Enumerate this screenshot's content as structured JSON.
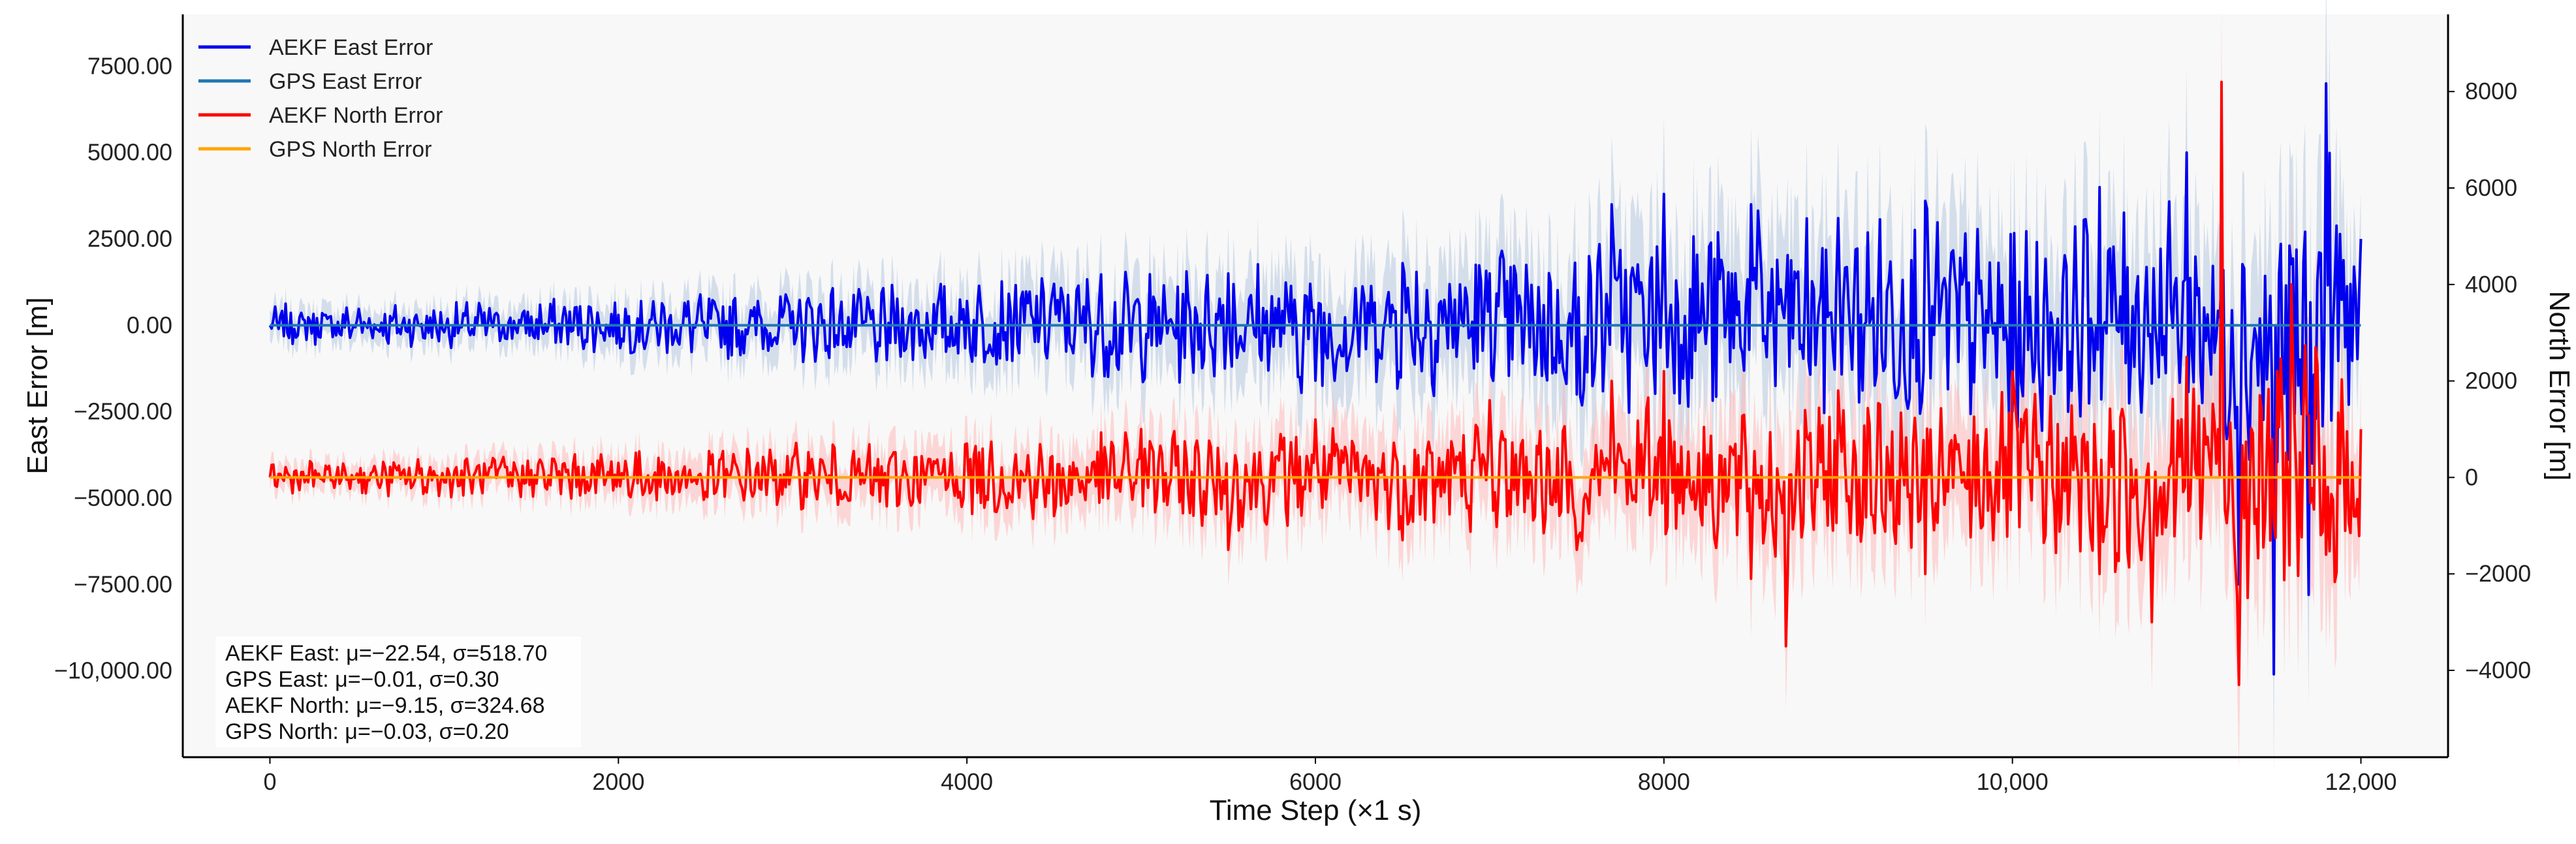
{
  "chart_data": {
    "type": "line",
    "xlabel": "Time Step (×1 s)",
    "ylabel_left": "East Error [m]",
    "ylabel_right": "North Error [m]",
    "xlim": [
      -500,
      12500
    ],
    "ylim_left": [
      -12500,
      9000
    ],
    "ylim_right": [
      -5800,
      9600
    ],
    "x_ticks": [
      0,
      2000,
      4000,
      6000,
      8000,
      10000,
      12000
    ],
    "x_tick_labels": [
      "0",
      "2000",
      "4000",
      "6000",
      "8000",
      "10,000",
      "12,000"
    ],
    "y_left_ticks": [
      7500,
      5000,
      2500,
      0,
      -2500,
      -5000,
      -7500,
      -10000
    ],
    "y_left_tick_labels": [
      "7500.00",
      "5000.00",
      "2500.00",
      "0.00",
      "−2500.00",
      "−5000.00",
      "−7500.00",
      "−10,000.00"
    ],
    "y_right_ticks": [
      8000,
      6000,
      4000,
      2000,
      0,
      -2000,
      -4000
    ],
    "y_right_tick_labels": [
      "8000",
      "6000",
      "4000",
      "2000",
      "0",
      "−2000",
      "−4000"
    ],
    "grid": false,
    "legend_position": "top-left",
    "colors": {
      "aekf_east": "#0000ee",
      "gps_east": "#1f77b4",
      "aekf_north": "#ff0000",
      "gps_north": "#ffa500",
      "east_band": "#b0c4de",
      "north_band": "#ffb3b3",
      "plot_bg": "#f8f8f8"
    },
    "series": [
      {
        "name": "AEKF East Error",
        "axis": "left",
        "color": "#0000ee",
        "x": [
          0,
          500,
          1000,
          1500,
          2000,
          2500,
          3000,
          3500,
          4000,
          4500,
          5000,
          5500,
          6000,
          6500,
          7000,
          7500,
          7700,
          8000,
          8500,
          9000,
          9500,
          10000,
          10500,
          11000,
          11300,
          11500,
          11700,
          11800,
          12000
        ],
        "values": [
          0,
          150,
          -200,
          250,
          300,
          -300,
          400,
          -600,
          700,
          1200,
          -900,
          1500,
          -1600,
          1800,
          1500,
          -2000,
          3500,
          3800,
          3500,
          3100,
          3600,
          -2500,
          4000,
          5000,
          -7500,
          -10100,
          -7800,
          7000,
          2500
        ],
        "envelope": [
          1000,
          1000,
          1100,
          1200,
          1400,
          1600,
          1800,
          2000,
          2200,
          2500,
          2700,
          3000,
          3200,
          3500,
          3700,
          4000,
          4500,
          5000,
          5000,
          5000,
          5000,
          5000,
          5000,
          5500,
          6000,
          6500,
          7000,
          8000,
          3000
        ]
      },
      {
        "name": "GPS East Error",
        "axis": "left",
        "color": "#1f77b4",
        "x": [
          0,
          12000
        ],
        "values": [
          0,
          0
        ]
      },
      {
        "name": "AEKF North Error",
        "axis": "right",
        "color": "#ff0000",
        "x": [
          0,
          500,
          1000,
          1500,
          2000,
          2500,
          3000,
          3500,
          4000,
          4500,
          5000,
          5500,
          6000,
          6500,
          7000,
          7500,
          7700,
          8000,
          8500,
          8700,
          9000,
          9500,
          10000,
          10500,
          10800,
          11000,
          11200,
          11300,
          11600,
          11800,
          12000
        ],
        "values": [
          0,
          80,
          -100,
          150,
          300,
          -300,
          400,
          -500,
          700,
          -800,
          1000,
          -1500,
          1200,
          -1300,
          1600,
          -1500,
          2000,
          2200,
          -2100,
          -3500,
          1800,
          -2000,
          2200,
          -2000,
          -3000,
          2500,
          8200,
          -4300,
          4000,
          -1600,
          1000
        ],
        "envelope": [
          600,
          600,
          700,
          800,
          900,
          1000,
          1100,
          1200,
          1300,
          1400,
          1600,
          1700,
          1800,
          1900,
          2000,
          2100,
          2300,
          2500,
          2700,
          3000,
          2600,
          2600,
          2800,
          3000,
          3200,
          3300,
          3500,
          4000,
          4500,
          4500,
          2500
        ]
      },
      {
        "name": "GPS North Error",
        "axis": "right",
        "color": "#ffa500",
        "x": [
          0,
          12000
        ],
        "values": [
          0,
          0
        ]
      }
    ],
    "legend": [
      "AEKF East Error",
      "GPS East Error",
      "AEKF North Error",
      "GPS North Error"
    ],
    "annotations": [
      "AEKF East: μ=−22.54, σ=518.70",
      "GPS East: μ=−0.01, σ=0.30",
      "AEKF North: μ=−9.15, σ=324.68",
      "GPS North: μ=−0.03, σ=0.20"
    ]
  }
}
